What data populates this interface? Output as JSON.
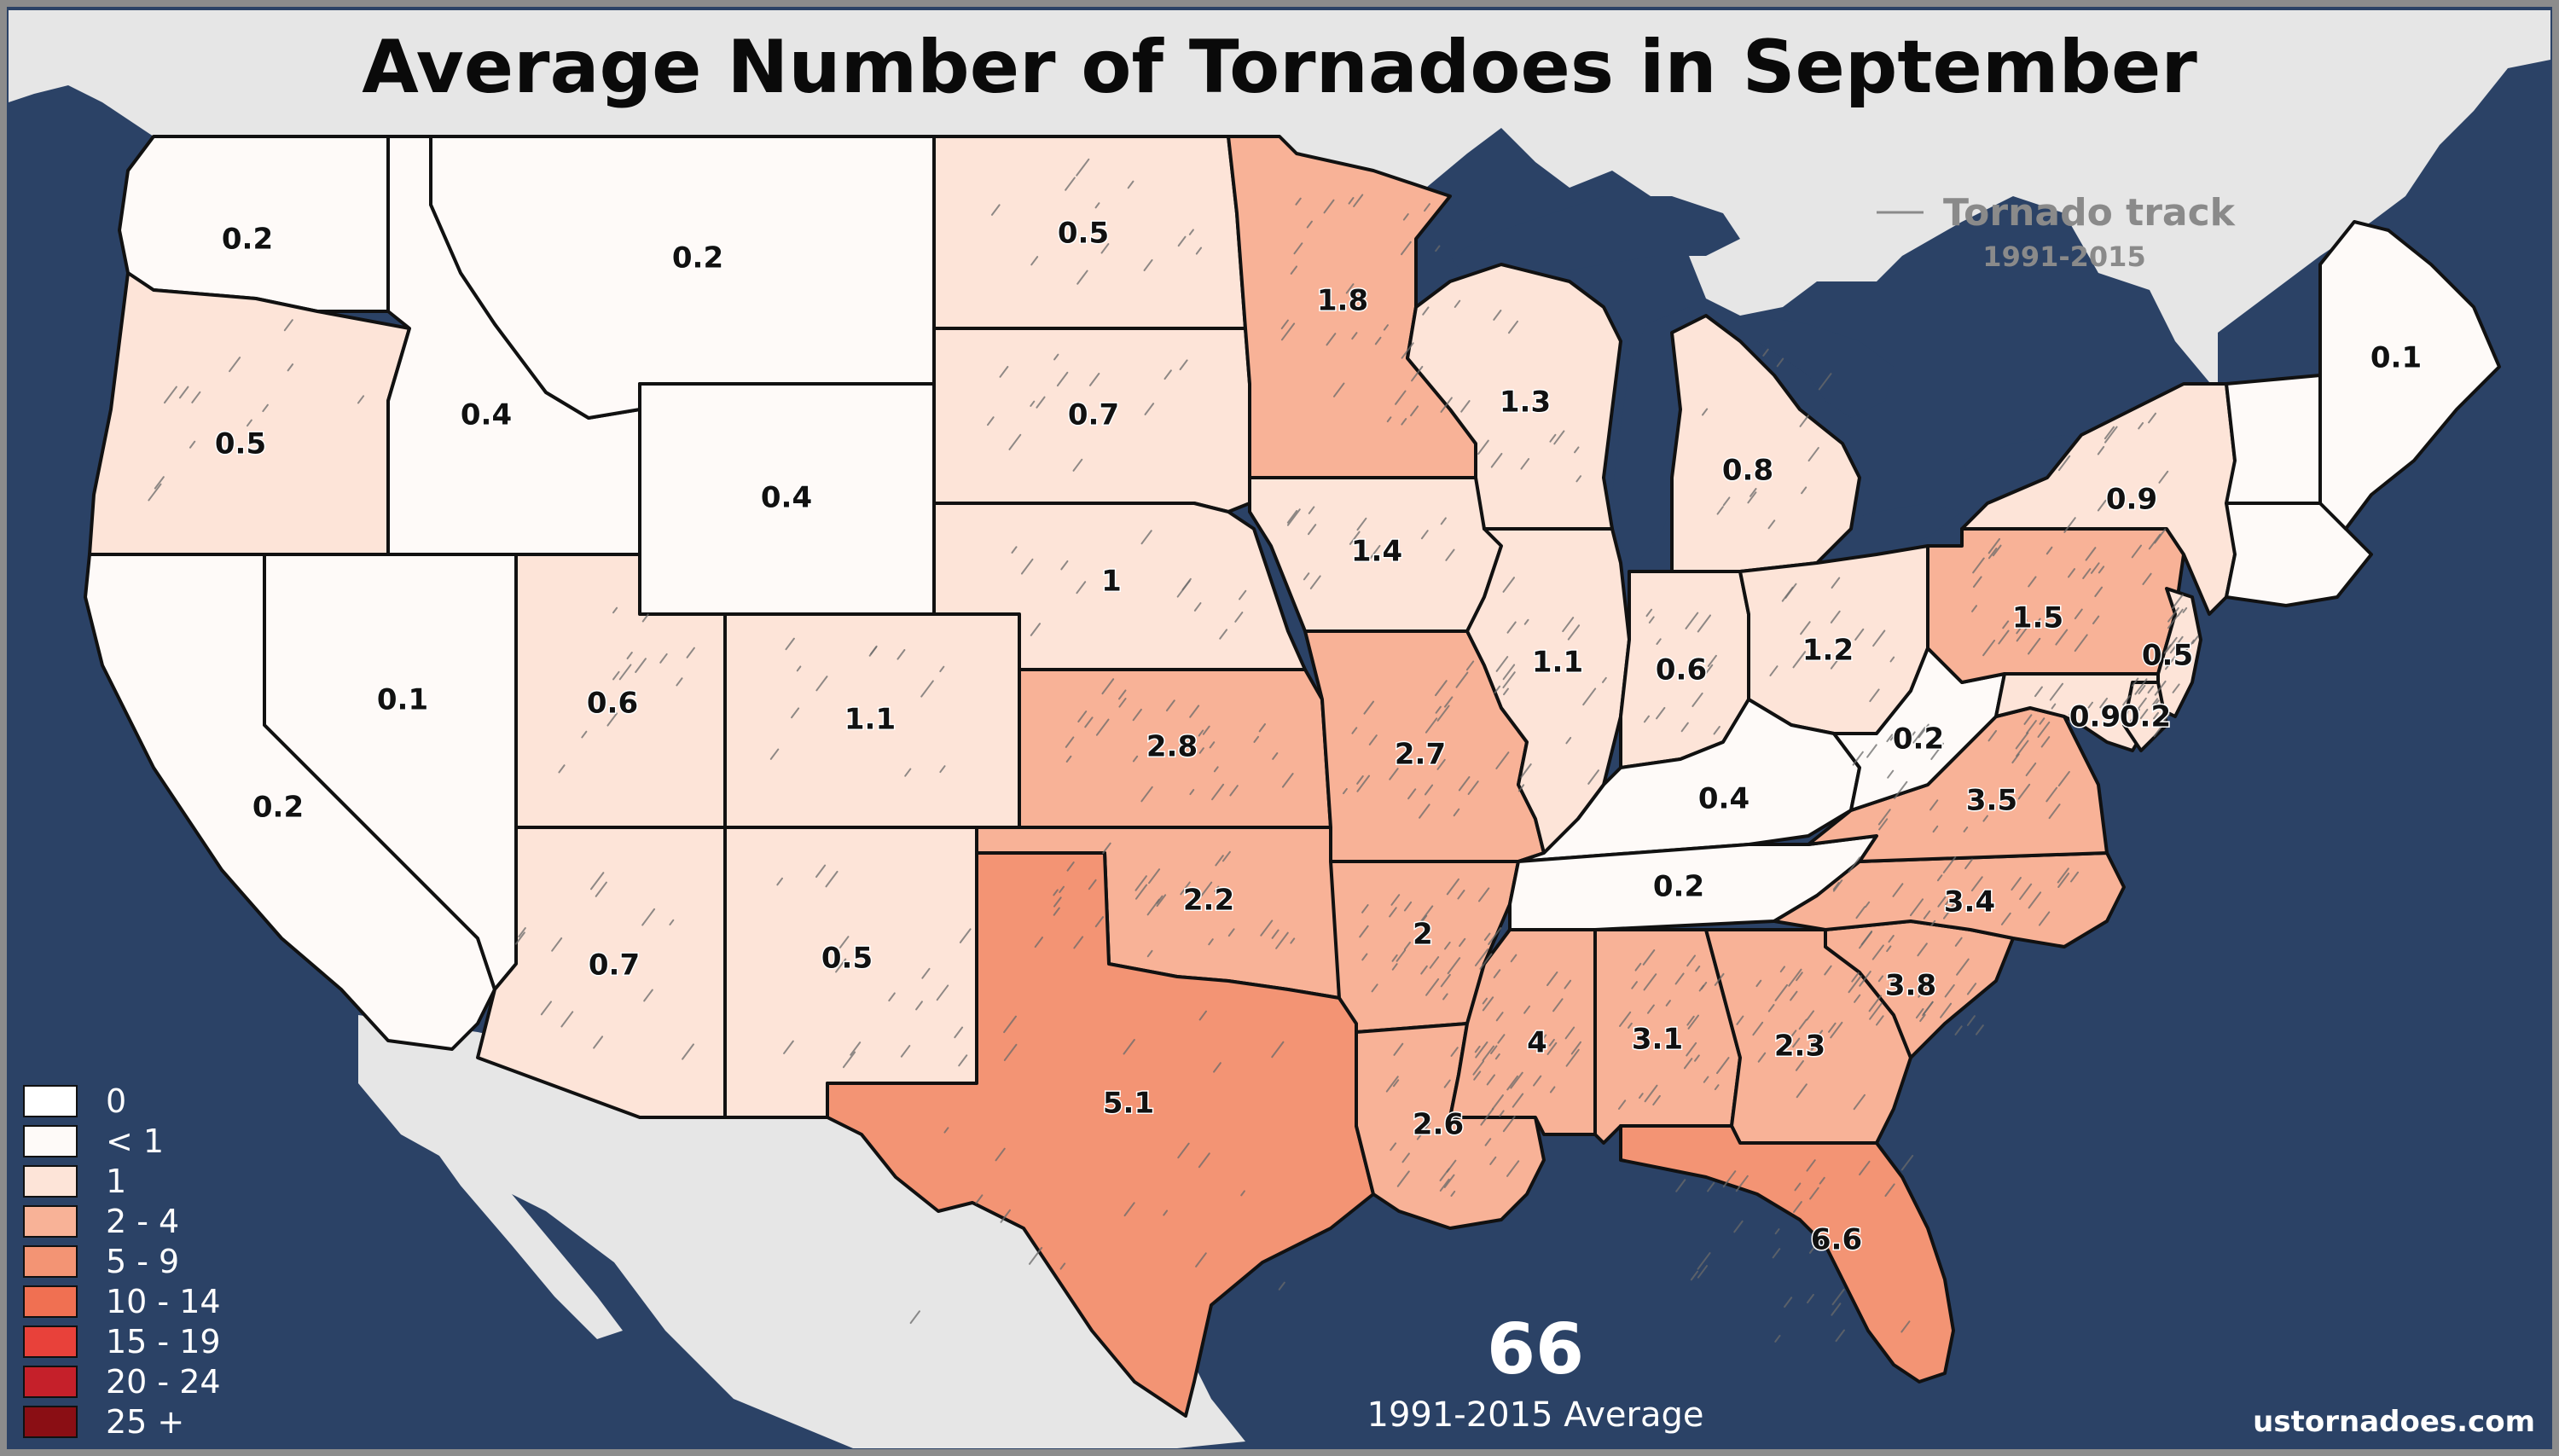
{
  "title": "Average Number of Tornadoes in September",
  "track_legend": {
    "title": "Tornado track",
    "years": "1991-2015"
  },
  "total": {
    "value": "66",
    "label": "1991-2015 Average"
  },
  "credit": "ustornadoes.com",
  "colors": {
    "ocean": "#2b4266",
    "land_other": "#e6e6e6",
    "white": "#fefaf8",
    "lt1": "#fde4d8",
    "r1": "#fcd8c7",
    "r2_4": "#f8b297",
    "r5_9": "#f39474",
    "r10_14": "#f07052",
    "r15_19": "#e8413a",
    "r20_24": "#c5202a",
    "r25": "#8a0e14"
  },
  "legend": [
    {
      "label": "0",
      "color": "#ffffff"
    },
    {
      "label": "< 1",
      "color": "#fefaf8"
    },
    {
      "label": "1",
      "color": "#fde4d8"
    },
    {
      "label": "2 - 4",
      "color": "#f8b297"
    },
    {
      "label": "5 - 9",
      "color": "#f39474"
    },
    {
      "label": "10 - 14",
      "color": "#f07052"
    },
    {
      "label": "15 - 19",
      "color": "#e8413a"
    },
    {
      "label": "20 - 24",
      "color": "#c5202a"
    },
    {
      "label": "25 +",
      "color": "#8a0e14"
    }
  ],
  "states": [
    {
      "id": "WA",
      "value": "0.2"
    },
    {
      "id": "OR",
      "value": "0.5"
    },
    {
      "id": "CA",
      "value": "0.2"
    },
    {
      "id": "ID",
      "value": "0.4"
    },
    {
      "id": "NV",
      "value": "0.1"
    },
    {
      "id": "MT",
      "value": "0.2"
    },
    {
      "id": "WY",
      "value": "0.4"
    },
    {
      "id": "UT",
      "value": "0.6"
    },
    {
      "id": "AZ",
      "value": "0.7"
    },
    {
      "id": "CO",
      "value": "1.1"
    },
    {
      "id": "NM",
      "value": "0.5"
    },
    {
      "id": "ND",
      "value": "0.5"
    },
    {
      "id": "SD",
      "value": "0.7"
    },
    {
      "id": "NE",
      "value": "1"
    },
    {
      "id": "KS",
      "value": "2.8"
    },
    {
      "id": "OK",
      "value": "2.2"
    },
    {
      "id": "TX",
      "value": "5.1"
    },
    {
      "id": "MN",
      "value": "1.8"
    },
    {
      "id": "IA",
      "value": "1.4"
    },
    {
      "id": "MO",
      "value": "2.7"
    },
    {
      "id": "AR",
      "value": "2"
    },
    {
      "id": "LA",
      "value": "2.6"
    },
    {
      "id": "WI",
      "value": "1.3"
    },
    {
      "id": "IL",
      "value": "1.1"
    },
    {
      "id": "MI",
      "value": "0.8"
    },
    {
      "id": "IN",
      "value": "0.6"
    },
    {
      "id": "OH",
      "value": "1.2"
    },
    {
      "id": "KY",
      "value": "0.4"
    },
    {
      "id": "TN",
      "value": "0.2"
    },
    {
      "id": "MS",
      "value": "4"
    },
    {
      "id": "AL",
      "value": "3.1"
    },
    {
      "id": "GA",
      "value": "2.3"
    },
    {
      "id": "FL",
      "value": "6.6"
    },
    {
      "id": "SC",
      "value": "3.8"
    },
    {
      "id": "NC",
      "value": "3.4"
    },
    {
      "id": "VA",
      "value": "3.5"
    },
    {
      "id": "WV",
      "value": "0.2"
    },
    {
      "id": "PA",
      "value": "1.5"
    },
    {
      "id": "NY",
      "value": "0.9"
    },
    {
      "id": "NJ",
      "value": "0.5"
    },
    {
      "id": "MD",
      "value": "0.9"
    },
    {
      "id": "DE",
      "value": "0.2"
    },
    {
      "id": "ME",
      "value": "0.1"
    }
  ]
}
